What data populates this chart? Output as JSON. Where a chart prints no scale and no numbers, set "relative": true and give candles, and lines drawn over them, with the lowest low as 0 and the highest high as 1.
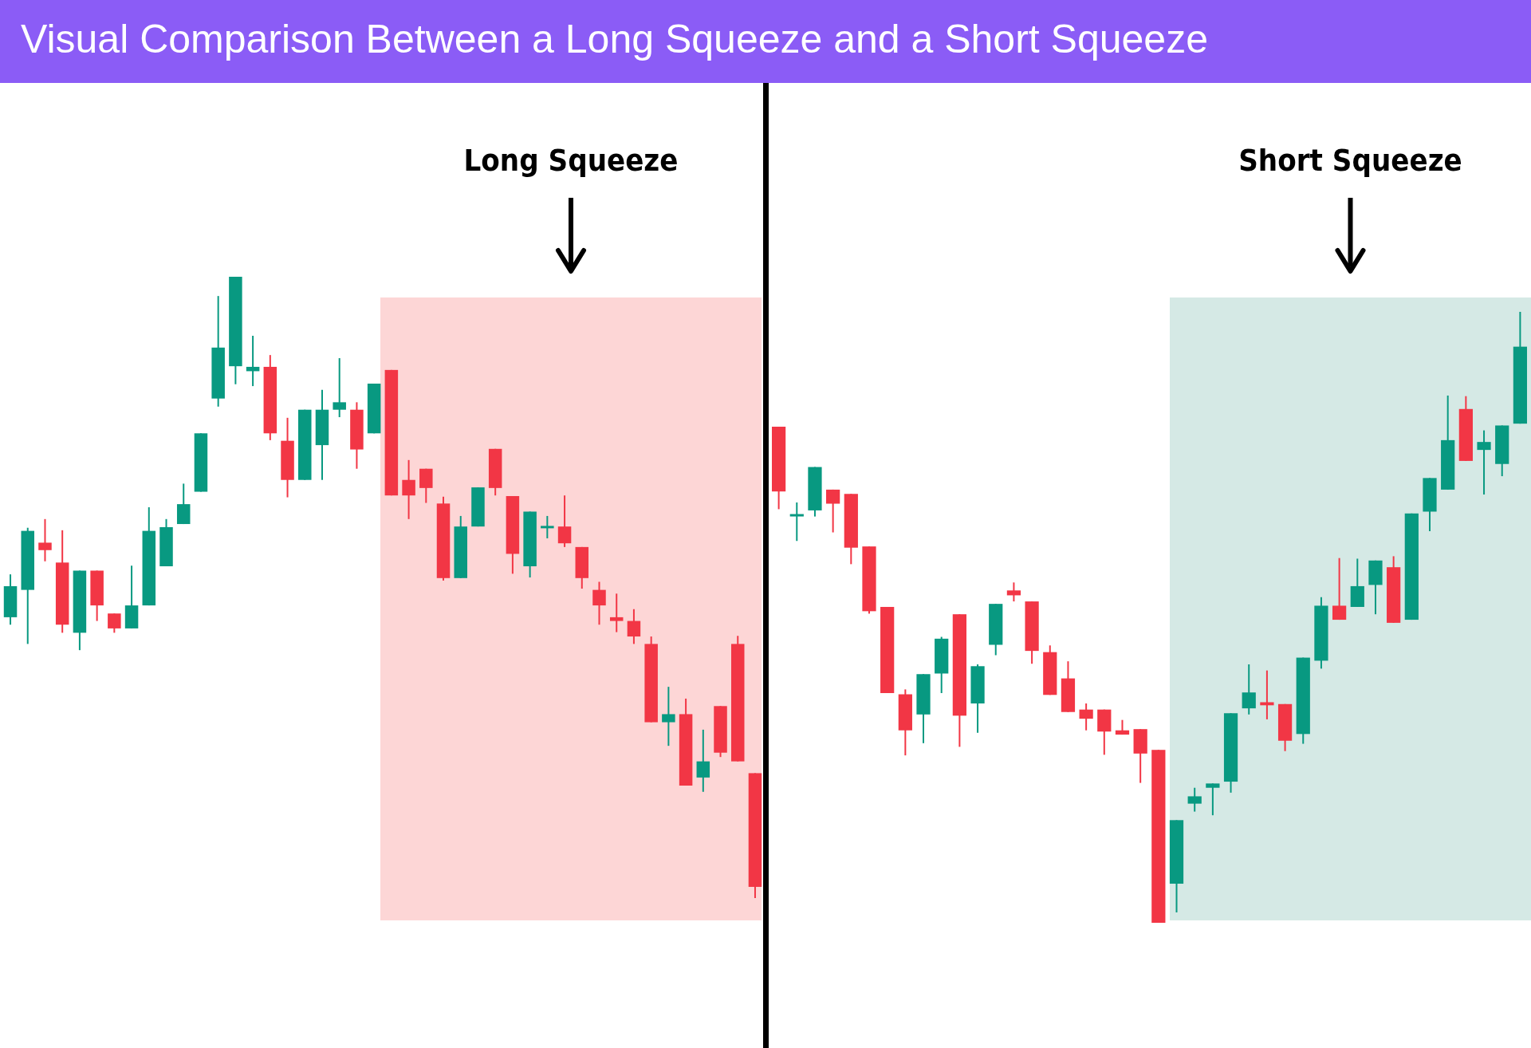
{
  "chart_data": [
    {
      "type": "candlestick",
      "title": "Visual Comparison Between a Long Squeeze and a Short Squeeze",
      "relative": true,
      "categories": [
        null,
        null,
        null,
        null,
        null,
        null,
        null,
        null,
        null,
        null,
        null,
        null,
        null,
        null,
        null,
        null,
        null,
        null,
        null,
        null,
        null,
        null,
        null,
        null,
        null,
        null,
        null,
        null,
        null,
        null,
        null,
        null,
        null,
        null,
        null,
        null,
        null,
        null,
        null,
        null,
        null,
        null,
        null,
        null
      ],
      "ohlc": [
        [
          0.452,
          0.521,
          0.44,
          0.502
        ],
        [
          0.496,
          0.596,
          0.409,
          0.591
        ],
        [
          0.572,
          0.61,
          0.542,
          0.56
        ],
        [
          0.54,
          0.592,
          0.427,
          0.44
        ],
        [
          0.427,
          0.527,
          0.399,
          0.527
        ],
        [
          0.527,
          0.527,
          0.446,
          0.471
        ],
        [
          0.458,
          0.458,
          0.427,
          0.434
        ],
        [
          0.434,
          0.535,
          0.434,
          0.471
        ],
        [
          0.471,
          0.629,
          0.471,
          0.591
        ],
        [
          0.534,
          0.61,
          0.534,
          0.597
        ],
        [
          0.602,
          0.667,
          0.602,
          0.634
        ],
        [
          0.654,
          0.748,
          0.654,
          0.748
        ],
        [
          0.804,
          0.969,
          0.791,
          0.886
        ],
        [
          0.856,
          1,
          0.827,
          1
        ],
        [
          0.848,
          0.905,
          0.824,
          0.855
        ],
        [
          0.855,
          0.874,
          0.737,
          0.748
        ],
        [
          0.736,
          0.773,
          0.645,
          0.673
        ],
        [
          0.673,
          0.786,
          0.673,
          0.786
        ],
        [
          0.729,
          0.818,
          0.673,
          0.786
        ],
        [
          0.786,
          0.869,
          0.774,
          0.798
        ],
        [
          0.786,
          0.798,
          0.691,
          0.722
        ],
        [
          0.748,
          0.828,
          0.748,
          0.828
        ],
        [
          0.85,
          0.85,
          0.648,
          0.648
        ],
        [
          0.673,
          0.705,
          0.61,
          0.648
        ],
        [
          0.691,
          0.691,
          0.636,
          0.66
        ],
        [
          0.635,
          0.646,
          0.511,
          0.515
        ],
        [
          0.515,
          0.615,
          0.515,
          0.598
        ],
        [
          0.598,
          0.661,
          0.598,
          0.661
        ],
        [
          0.723,
          0.723,
          0.648,
          0.66
        ],
        [
          0.647,
          0.647,
          0.522,
          0.554
        ],
        [
          0.534,
          0.622,
          0.516,
          0.622
        ],
        [
          0.597,
          0.615,
          0.579,
          0.599
        ],
        [
          0.598,
          0.648,
          0.565,
          0.571
        ],
        [
          0.565,
          0.565,
          0.498,
          0.515
        ],
        [
          0.496,
          0.509,
          0.44,
          0.471
        ],
        [
          0.452,
          0.49,
          0.428,
          0.446
        ],
        [
          0.446,
          0.465,
          0.409,
          0.421
        ],
        [
          0.409,
          0.421,
          0.283,
          0.283
        ],
        [
          0.283,
          0.34,
          0.245,
          0.296
        ],
        [
          0.296,
          0.321,
          0.181,
          0.181
        ],
        [
          0.194,
          0.271,
          0.171,
          0.22
        ],
        [
          0.309,
          0.309,
          0.227,
          0.234
        ],
        [
          0.409,
          0.422,
          0.22,
          0.22
        ],
        [
          0.201,
          0.201,
          0,
          0.018
        ]
      ],
      "colors": [
        "#089981",
        "#089981",
        "#f23645",
        "#f23645",
        "#089981",
        "#f23645",
        "#f23645",
        "#089981",
        "#089981",
        "#089981",
        "#089981",
        "#089981",
        "#089981",
        "#089981",
        "#089981",
        "#f23645",
        "#f23645",
        "#089981",
        "#089981",
        "#089981",
        "#f23645",
        "#089981",
        "#f23645",
        "#f23645",
        "#f23645",
        "#f23645",
        "#089981",
        "#089981",
        "#f23645",
        "#f23645",
        "#089981",
        "#089981",
        "#f23645",
        "#f23645",
        "#f23645",
        "#f23645",
        "#f23645",
        "#f23645",
        "#089981",
        "#f23645",
        "#089981",
        "#f23645",
        "#f23645",
        "#f23645"
      ],
      "annotations": [
        "Long Squeeze"
      ]
    },
    {
      "type": "candlestick",
      "relative": true,
      "categories": [
        null,
        null,
        null,
        null,
        null,
        null,
        null,
        null,
        null,
        null,
        null,
        null,
        null,
        null,
        null,
        null,
        null,
        null,
        null,
        null,
        null,
        null,
        null,
        null,
        null,
        null,
        null,
        null,
        null,
        null,
        null,
        null,
        null,
        null,
        null,
        null,
        null,
        null,
        null,
        null,
        null,
        null
      ],
      "ohlc": [
        [
          0.812,
          0.812,
          0.677,
          0.706
        ],
        [
          0.667,
          0.688,
          0.625,
          0.669
        ],
        [
          0.675,
          0.746,
          0.665,
          0.746
        ],
        [
          0.709,
          0.709,
          0.639,
          0.686
        ],
        [
          0.702,
          0.702,
          0.587,
          0.614
        ],
        [
          0.616,
          0.616,
          0.506,
          0.51
        ],
        [
          0.517,
          0.517,
          0.376,
          0.376
        ],
        [
          0.374,
          0.382,
          0.274,
          0.315
        ],
        [
          0.341,
          0.407,
          0.294,
          0.407
        ],
        [
          0.408,
          0.468,
          0.376,
          0.465
        ],
        [
          0.505,
          0.505,
          0.288,
          0.339
        ],
        [
          0.359,
          0.423,
          0.311,
          0.42
        ],
        [
          0.455,
          0.522,
          0.438,
          0.522
        ],
        [
          0.544,
          0.557,
          0.526,
          0.536
        ],
        [
          0.526,
          0.526,
          0.424,
          0.445
        ],
        [
          0.443,
          0.454,
          0.373,
          0.373
        ],
        [
          0.4,
          0.428,
          0.345,
          0.345
        ],
        [
          0.349,
          0.359,
          0.315,
          0.334
        ],
        [
          0.349,
          0.349,
          0.275,
          0.313
        ],
        [
          0.315,
          0.332,
          0.308,
          0.308
        ],
        [
          0.317,
          0.317,
          0.229,
          0.277
        ],
        [
          0.283,
          0.283,
          0,
          0
        ],
        [
          0.064,
          0.168,
          0.017,
          0.168
        ],
        [
          0.195,
          0.221,
          0.182,
          0.207
        ],
        [
          0.221,
          0.228,
          0.176,
          0.228
        ],
        [
          0.231,
          0.343,
          0.213,
          0.343
        ],
        [
          0.351,
          0.423,
          0.341,
          0.377
        ],
        [
          0.361,
          0.413,
          0.333,
          0.356
        ],
        [
          0.358,
          0.358,
          0.281,
          0.298
        ],
        [
          0.309,
          0.434,
          0.293,
          0.434
        ],
        [
          0.429,
          0.533,
          0.416,
          0.519
        ],
        [
          0.519,
          0.597,
          0.496,
          0.496
        ],
        [
          0.517,
          0.596,
          0.517,
          0.551
        ],
        [
          0.553,
          0.593,
          0.505,
          0.593
        ],
        [
          0.582,
          0.6,
          0.491,
          0.491
        ],
        [
          0.496,
          0.67,
          0.496,
          0.67
        ],
        [
          0.673,
          0.728,
          0.641,
          0.728
        ],
        [
          0.709,
          0.863,
          0.709,
          0.79
        ],
        [
          0.841,
          0.862,
          0.756,
          0.756
        ],
        [
          0.774,
          0.806,
          0.701,
          0.787
        ],
        [
          0.751,
          0.814,
          0.731,
          0.814
        ],
        [
          0.817,
          1,
          0.817,
          0.943
        ]
      ],
      "colors": [
        "#f23645",
        "#089981",
        "#089981",
        "#f23645",
        "#f23645",
        "#f23645",
        "#f23645",
        "#f23645",
        "#089981",
        "#089981",
        "#f23645",
        "#089981",
        "#089981",
        "#f23645",
        "#f23645",
        "#f23645",
        "#f23645",
        "#f23645",
        "#f23645",
        "#f23645",
        "#f23645",
        "#f23645",
        "#089981",
        "#089981",
        "#089981",
        "#089981",
        "#089981",
        "#f23645",
        "#f23645",
        "#089981",
        "#089981",
        "#f23645",
        "#089981",
        "#089981",
        "#f23645",
        "#089981",
        "#089981",
        "#089981",
        "#f23645",
        "#089981",
        "#089981",
        "#089981"
      ],
      "annotations": [
        "Short Squeeze"
      ]
    }
  ]
}
